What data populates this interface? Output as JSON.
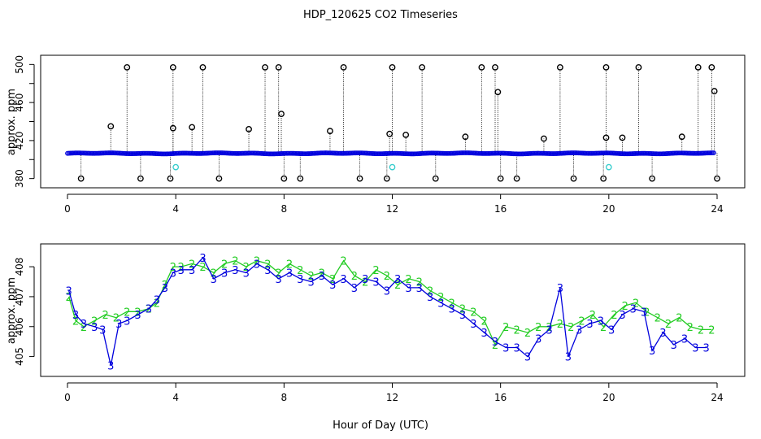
{
  "figure": {
    "title": "HDP_120625  CO2 Timeseries",
    "xlabel": "Hour of Day (UTC)"
  },
  "colors": {
    "axis": "#000000",
    "raw_points": "#000000",
    "series_2": "#22cc22",
    "series_3": "#0000dd",
    "cyan_points": "#33cccc"
  },
  "chart_data": [
    {
      "type": "scatter",
      "ylabel": "approx. ppm",
      "xlim": [
        0,
        24
      ],
      "ylim": [
        378,
        502
      ],
      "x_ticks": [
        0,
        4,
        8,
        12,
        16,
        20,
        24
      ],
      "y_ticks": [
        380,
        420,
        460,
        500
      ],
      "y_minor_ticks": [
        400,
        440,
        480
      ],
      "baseline_band": {
        "y_start": 406.5,
        "y_end": 406.5,
        "note_color": "blue"
      },
      "outliers_high": [
        {
          "x": 2.2,
          "y": 497
        },
        {
          "x": 3.9,
          "y": 497
        },
        {
          "x": 5.0,
          "y": 497
        },
        {
          "x": 7.3,
          "y": 497
        },
        {
          "x": 7.8,
          "y": 497
        },
        {
          "x": 10.2,
          "y": 497
        },
        {
          "x": 12.0,
          "y": 497
        },
        {
          "x": 13.1,
          "y": 497
        },
        {
          "x": 15.3,
          "y": 497
        },
        {
          "x": 15.8,
          "y": 497
        },
        {
          "x": 18.2,
          "y": 497
        },
        {
          "x": 19.9,
          "y": 497
        },
        {
          "x": 21.1,
          "y": 497
        },
        {
          "x": 23.3,
          "y": 497
        },
        {
          "x": 23.8,
          "y": 497
        }
      ],
      "outliers_mid": [
        {
          "x": 1.6,
          "y": 435
        },
        {
          "x": 3.9,
          "y": 433
        },
        {
          "x": 4.6,
          "y": 434
        },
        {
          "x": 6.7,
          "y": 432
        },
        {
          "x": 7.9,
          "y": 448
        },
        {
          "x": 9.7,
          "y": 430
        },
        {
          "x": 11.9,
          "y": 427
        },
        {
          "x": 12.5,
          "y": 426
        },
        {
          "x": 14.7,
          "y": 424
        },
        {
          "x": 15.9,
          "y": 471
        },
        {
          "x": 17.6,
          "y": 422
        },
        {
          "x": 19.9,
          "y": 423
        },
        {
          "x": 20.5,
          "y": 423
        },
        {
          "x": 22.7,
          "y": 424
        },
        {
          "x": 23.9,
          "y": 472
        }
      ],
      "outliers_low": [
        {
          "x": 0.5,
          "y": 380
        },
        {
          "x": 2.7,
          "y": 380
        },
        {
          "x": 3.8,
          "y": 380
        },
        {
          "x": 5.6,
          "y": 380
        },
        {
          "x": 8.0,
          "y": 380
        },
        {
          "x": 8.6,
          "y": 380
        },
        {
          "x": 10.8,
          "y": 380
        },
        {
          "x": 11.8,
          "y": 380
        },
        {
          "x": 13.6,
          "y": 380
        },
        {
          "x": 16.0,
          "y": 380
        },
        {
          "x": 16.6,
          "y": 380
        },
        {
          "x": 18.7,
          "y": 380
        },
        {
          "x": 19.8,
          "y": 380
        },
        {
          "x": 21.6,
          "y": 380
        },
        {
          "x": 24.0,
          "y": 380
        }
      ],
      "cyan_points": [
        {
          "x": 4.0,
          "y": 392
        },
        {
          "x": 12.0,
          "y": 392
        },
        {
          "x": 20.0,
          "y": 392
        }
      ]
    },
    {
      "type": "line",
      "ylabel": "approx. ppm",
      "xlim": [
        0,
        24
      ],
      "ylim": [
        404.5,
        408.6
      ],
      "x_ticks": [
        0,
        4,
        8,
        12,
        16,
        20,
        24
      ],
      "y_ticks": [
        405,
        406,
        407,
        408
      ],
      "series": [
        {
          "name": "2",
          "x": [
            0.05,
            0.3,
            0.6,
            1.0,
            1.4,
            1.8,
            2.2,
            2.6,
            3.0,
            3.3,
            3.6,
            3.9,
            4.2,
            4.6,
            5.0,
            5.4,
            5.8,
            6.2,
            6.6,
            7.0,
            7.4,
            7.8,
            8.2,
            8.6,
            9.0,
            9.4,
            9.8,
            10.2,
            10.6,
            11.0,
            11.4,
            11.8,
            12.2,
            12.6,
            13.0,
            13.4,
            13.8,
            14.2,
            14.6,
            15.0,
            15.4,
            15.8,
            16.2,
            16.6,
            17.0,
            17.4,
            17.8,
            18.2,
            18.6,
            19.0,
            19.4,
            19.8,
            20.2,
            20.6,
            21.0,
            21.4,
            21.8,
            22.2,
            22.6,
            23.0,
            23.4,
            23.8
          ],
          "values": [
            407.0,
            406.2,
            406.0,
            406.2,
            406.4,
            406.3,
            406.5,
            406.5,
            406.6,
            406.8,
            407.4,
            408.0,
            408.0,
            408.1,
            408.0,
            407.8,
            408.1,
            408.2,
            408.0,
            408.2,
            408.1,
            407.8,
            408.1,
            407.9,
            407.7,
            407.8,
            407.6,
            408.2,
            407.7,
            407.5,
            407.9,
            407.7,
            407.4,
            407.6,
            407.5,
            407.2,
            407.0,
            406.8,
            406.6,
            406.5,
            406.2,
            405.4,
            406.0,
            405.9,
            405.8,
            406.0,
            406.0,
            406.1,
            406.0,
            406.2,
            406.4,
            406.0,
            406.4,
            406.7,
            406.8,
            406.5,
            406.3,
            406.1,
            406.3,
            406.0,
            405.9,
            405.9
          ]
        },
        {
          "name": "3",
          "x": [
            0.05,
            0.3,
            0.6,
            1.0,
            1.3,
            1.6,
            1.9,
            2.2,
            2.6,
            3.0,
            3.3,
            3.6,
            3.9,
            4.2,
            4.6,
            5.0,
            5.4,
            5.8,
            6.2,
            6.6,
            7.0,
            7.4,
            7.8,
            8.2,
            8.6,
            9.0,
            9.4,
            9.8,
            10.2,
            10.6,
            11.0,
            11.4,
            11.8,
            12.2,
            12.6,
            13.0,
            13.4,
            13.8,
            14.2,
            14.6,
            15.0,
            15.4,
            15.8,
            16.2,
            16.6,
            17.0,
            17.4,
            17.8,
            18.2,
            18.5,
            18.9,
            19.3,
            19.7,
            20.1,
            20.5,
            20.9,
            21.3,
            21.6,
            22.0,
            22.4,
            22.8,
            23.2,
            23.6
          ],
          "values": [
            407.2,
            406.4,
            406.1,
            406.0,
            405.9,
            404.7,
            406.1,
            406.2,
            406.4,
            406.6,
            406.9,
            407.3,
            407.8,
            407.9,
            407.9,
            408.3,
            407.6,
            407.8,
            407.9,
            407.8,
            408.1,
            407.9,
            407.6,
            407.8,
            407.6,
            407.5,
            407.7,
            407.4,
            407.6,
            407.3,
            407.6,
            407.5,
            407.2,
            407.6,
            407.3,
            407.3,
            407.0,
            406.8,
            406.6,
            406.4,
            406.1,
            405.8,
            405.5,
            405.3,
            405.3,
            405.0,
            405.6,
            405.9,
            407.3,
            405.0,
            405.9,
            406.1,
            406.2,
            405.9,
            406.4,
            406.6,
            406.5,
            405.2,
            405.8,
            405.4,
            405.6,
            405.3,
            405.3
          ]
        }
      ]
    }
  ]
}
